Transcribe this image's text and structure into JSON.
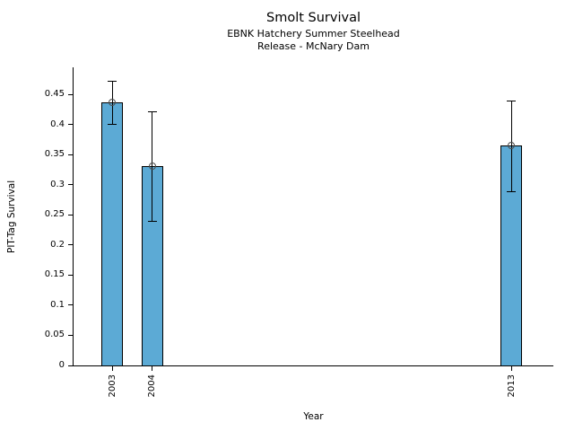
{
  "chart_data": {
    "type": "bar",
    "title": "Smolt Survival",
    "subtitle": [
      "EBNK Hatchery Summer Steelhead",
      "Release - McNary Dam"
    ],
    "xlabel": "Year",
    "ylabel": "PIT-Tag Survival",
    "categories": [
      "2003",
      "2004",
      "2013"
    ],
    "x": [
      2003,
      2004,
      2013
    ],
    "values": [
      0.437,
      0.331,
      0.366
    ],
    "error_low": [
      0.401,
      0.24,
      0.289
    ],
    "error_high": [
      0.472,
      0.422,
      0.44
    ],
    "xlim": [
      2002.03,
      2014.05
    ],
    "ylim": [
      0,
      0.495
    ],
    "yticks": [
      0,
      0.05,
      0.1,
      0.15,
      0.2,
      0.25,
      0.3,
      0.35,
      0.4,
      0.45
    ],
    "ytick_labels": [
      "0",
      "0.05",
      "0.1",
      "0.15",
      "0.2",
      "0.25",
      "0.3",
      "0.35",
      "0.4",
      "0.45"
    ],
    "bar_color": "#5CAAD5",
    "bar_edge_color": "#000000",
    "error_color": "#000000",
    "marker": "open-circle",
    "marker_edge_color": "#4d4d4d",
    "grid": false,
    "legend": null,
    "background": "#ffffff"
  }
}
